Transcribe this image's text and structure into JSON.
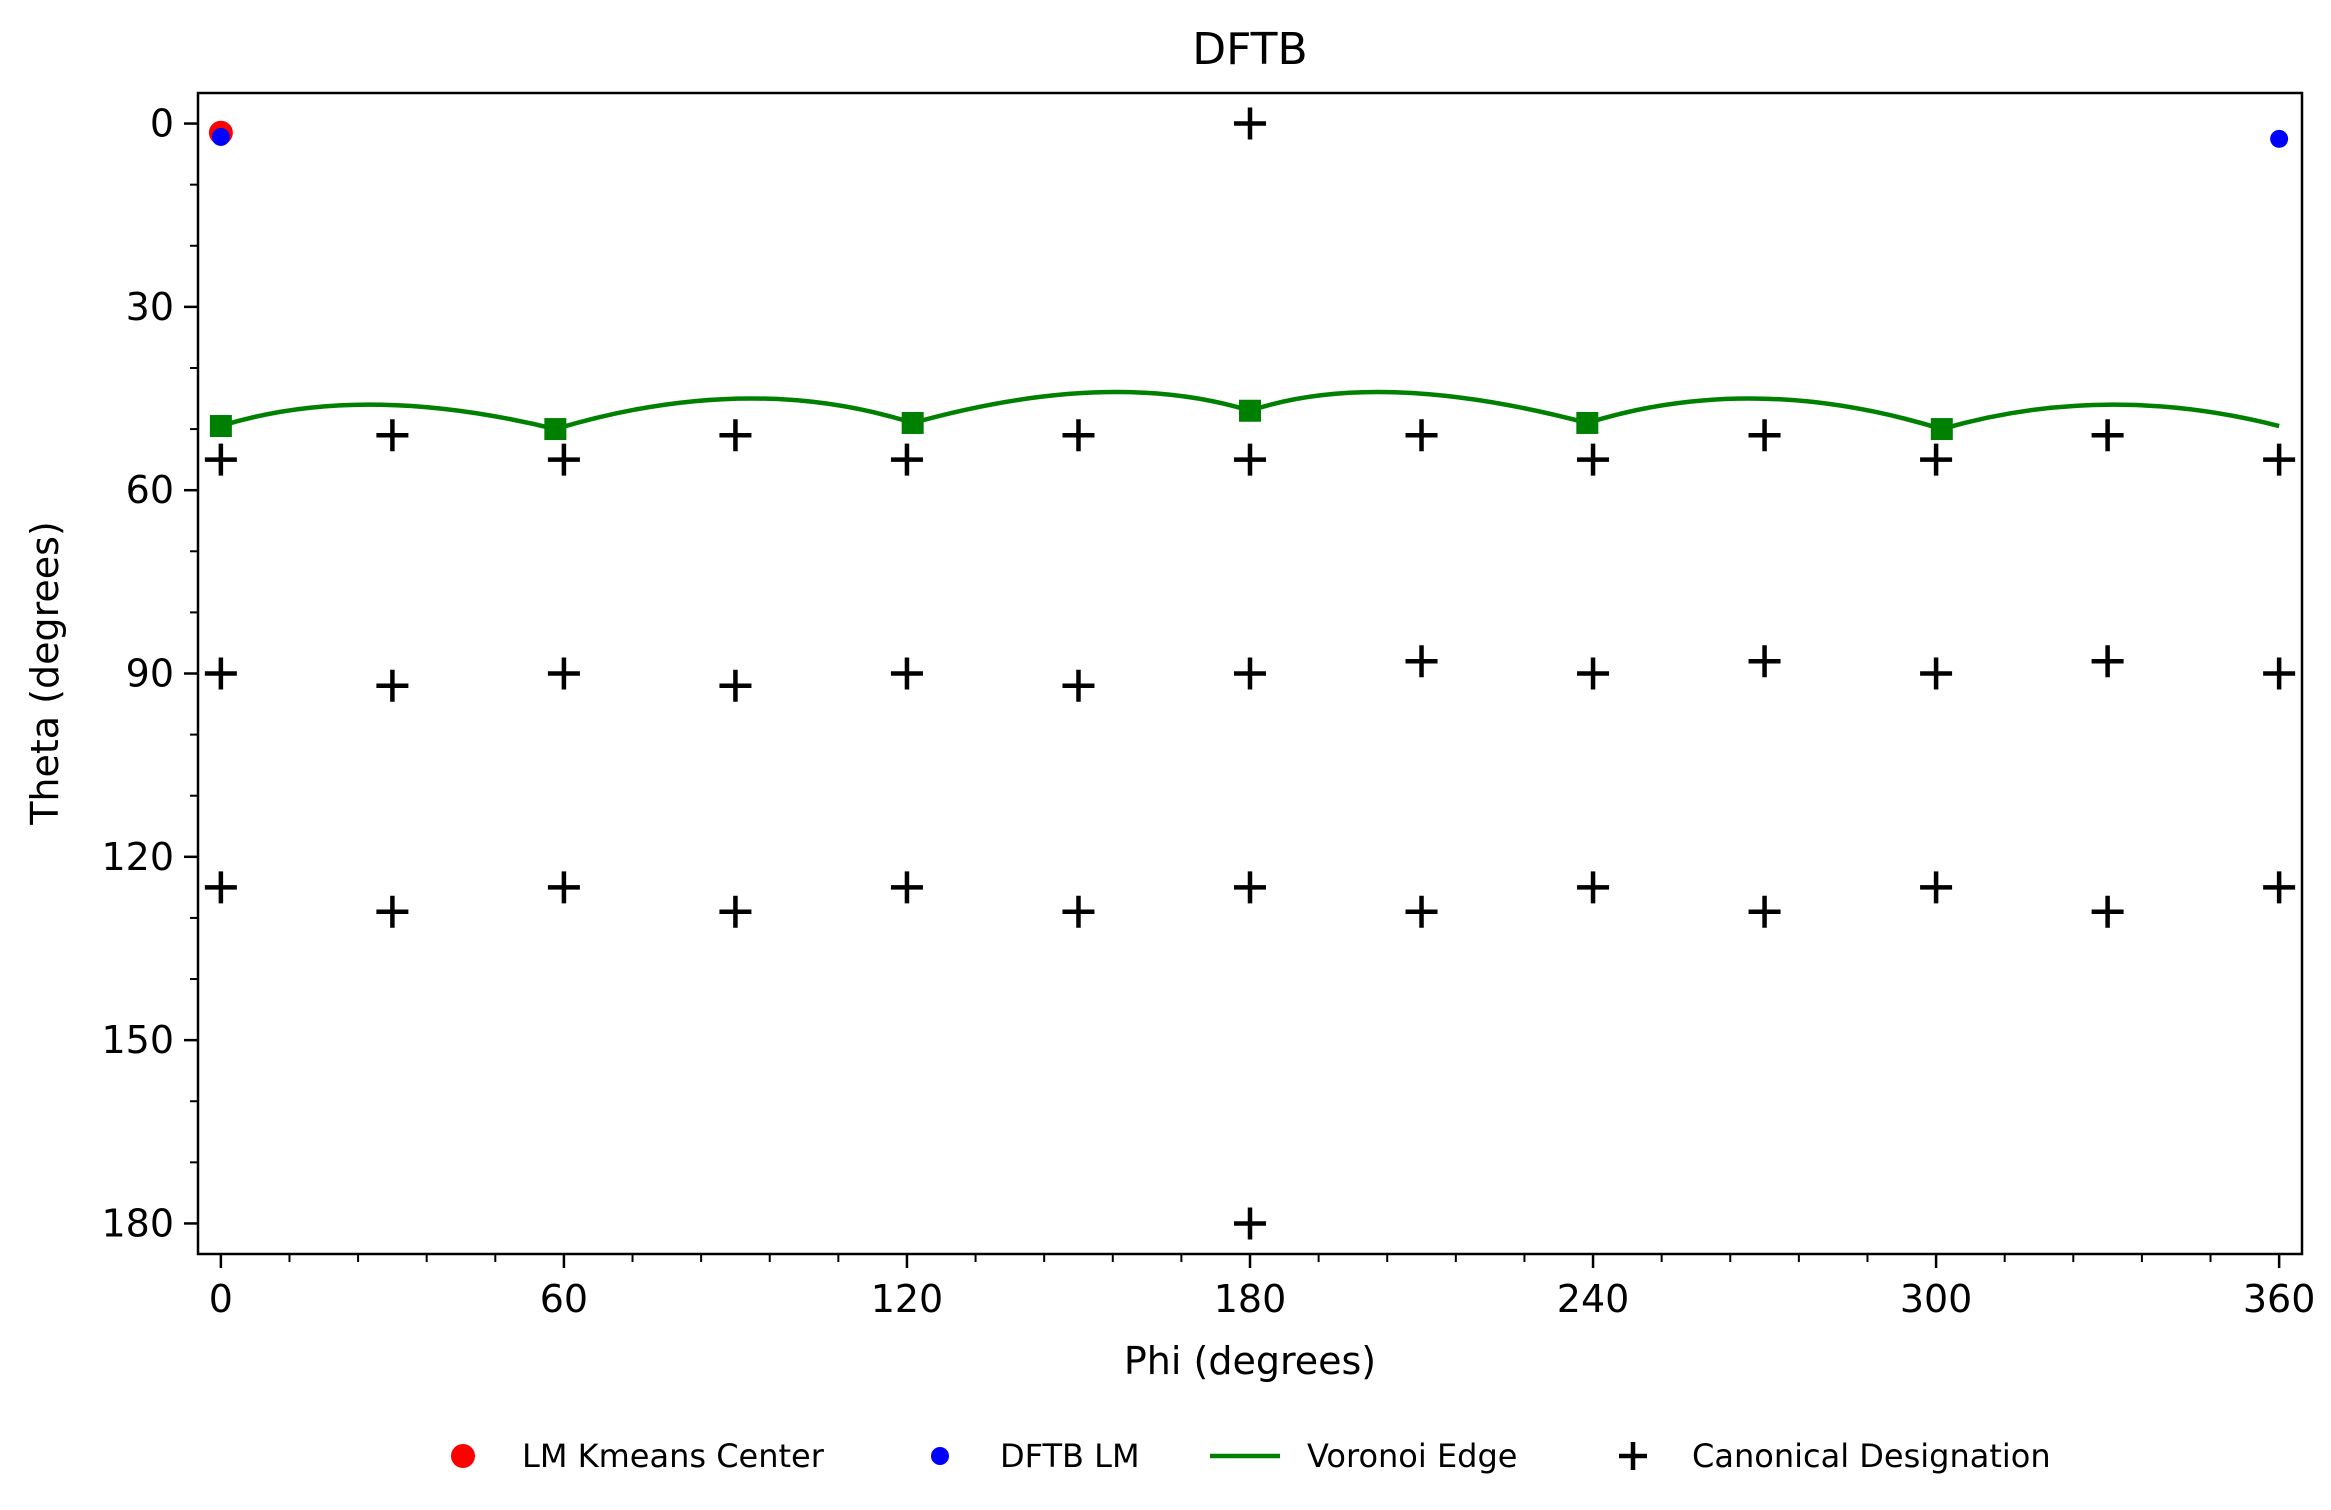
{
  "chart_data": {
    "type": "scatter",
    "title": "DFTB",
    "xlabel": "Phi (degrees)",
    "ylabel": "Theta (degrees)",
    "xlim": [
      -4,
      364
    ],
    "ylim": [
      185,
      -5
    ],
    "y_inverted": true,
    "grid": false,
    "xticks": [
      0,
      60,
      120,
      180,
      240,
      300,
      360
    ],
    "yticks": [
      0,
      30,
      60,
      90,
      120,
      150,
      180
    ],
    "xminor_step": 12,
    "yminor_step": 10,
    "legend_position": "bottom",
    "series": [
      {
        "name": "LM Kmeans Center",
        "kind": "point",
        "color": "#ff0000",
        "marker": "circle",
        "points": [
          [
            0,
            1.5
          ]
        ]
      },
      {
        "name": "DFTB LM",
        "kind": "point",
        "color": "#0000ff",
        "marker": "circle",
        "points": [
          [
            0,
            2.2
          ],
          [
            360,
            2.5
          ]
        ]
      },
      {
        "name": "Voronoi Edge",
        "kind": "line",
        "color": "#008000",
        "marker": "square",
        "vertices": [
          [
            0,
            49.5
          ],
          [
            58.5,
            50
          ],
          [
            121,
            49
          ],
          [
            180,
            47
          ],
          [
            239,
            49
          ],
          [
            301,
            50
          ]
        ],
        "arc_peaks": [
          [
            27,
            46
          ],
          [
            91,
            45
          ],
          [
            153,
            44
          ],
          [
            206,
            44
          ],
          [
            269,
            45
          ],
          [
            330,
            46
          ]
        ],
        "end": [
          360,
          49.5
        ]
      },
      {
        "name": "Canonical Designation",
        "kind": "point",
        "color": "#000000",
        "marker": "plus",
        "points": [
          [
            180,
            0
          ],
          [
            180,
            180
          ],
          [
            30,
            51
          ],
          [
            90,
            51
          ],
          [
            150,
            51
          ],
          [
            210,
            51
          ],
          [
            270,
            51
          ],
          [
            330,
            51
          ],
          [
            0,
            55
          ],
          [
            60,
            55
          ],
          [
            120,
            55
          ],
          [
            180,
            55
          ],
          [
            240,
            55
          ],
          [
            300,
            55
          ],
          [
            360,
            55
          ],
          [
            0,
            90
          ],
          [
            60,
            90
          ],
          [
            120,
            90
          ],
          [
            180,
            90
          ],
          [
            240,
            90
          ],
          [
            300,
            90
          ],
          [
            360,
            90
          ],
          [
            30,
            92
          ],
          [
            90,
            92
          ],
          [
            150,
            92
          ],
          [
            210,
            88
          ],
          [
            270,
            88
          ],
          [
            330,
            88
          ],
          [
            0,
            125
          ],
          [
            60,
            125
          ],
          [
            120,
            125
          ],
          [
            180,
            125
          ],
          [
            240,
            125
          ],
          [
            300,
            125
          ],
          [
            360,
            125
          ],
          [
            30,
            129
          ],
          [
            90,
            129
          ],
          [
            150,
            129
          ],
          [
            210,
            129
          ],
          [
            270,
            129
          ],
          [
            330,
            129
          ]
        ]
      }
    ]
  }
}
